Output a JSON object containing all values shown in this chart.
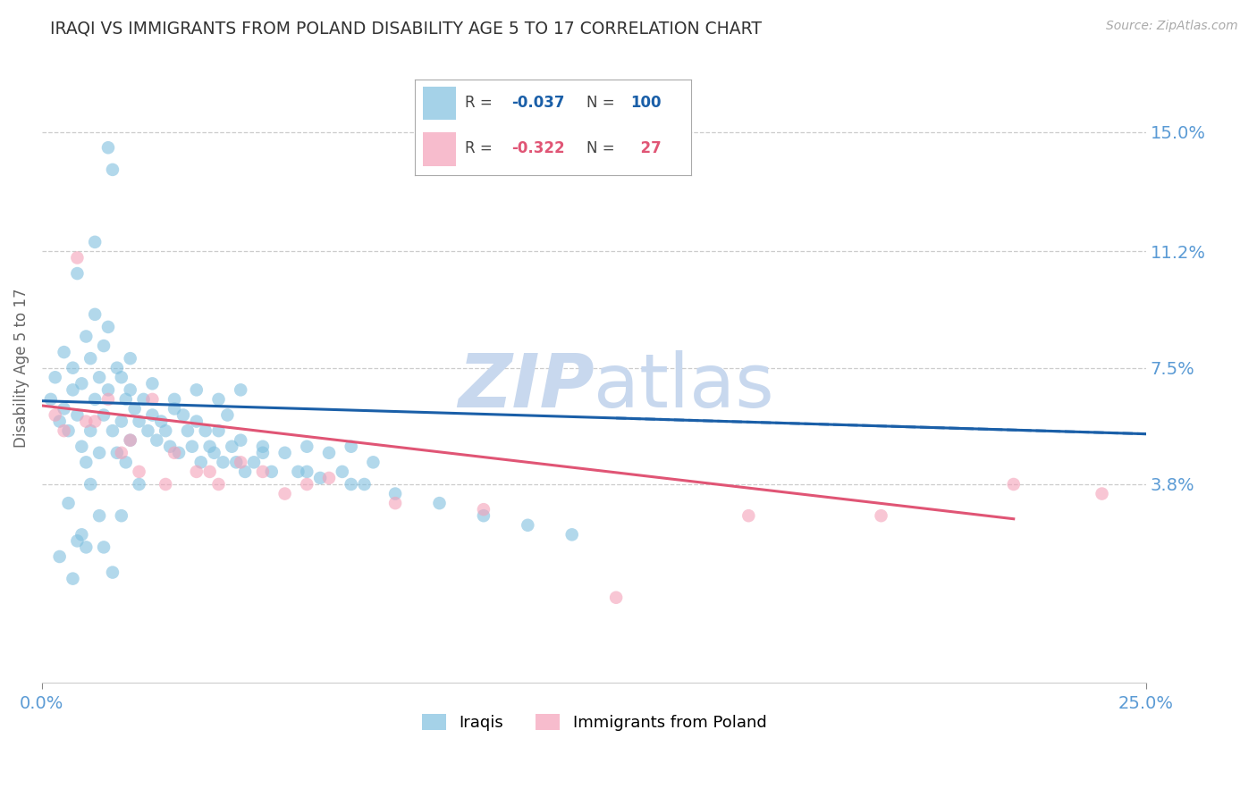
{
  "title": "IRAQI VS IMMIGRANTS FROM POLAND DISABILITY AGE 5 TO 17 CORRELATION CHART",
  "source": "Source: ZipAtlas.com",
  "ylabel": "Disability Age 5 to 17",
  "ytick_labels": [
    "15.0%",
    "11.2%",
    "7.5%",
    "3.8%"
  ],
  "ytick_values": [
    0.15,
    0.112,
    0.075,
    0.038
  ],
  "xlim": [
    0.0,
    0.25
  ],
  "ylim": [
    -0.025,
    0.175
  ],
  "iraq_color": "#7fbfdf",
  "poland_color": "#f4a0b8",
  "blue_line_color": "#1a5fa8",
  "pink_line_color": "#e05575",
  "background_color": "#ffffff",
  "grid_color": "#cccccc",
  "tick_label_color": "#5b9bd5",
  "watermark_zi_color": "#c8d8ee",
  "watermark_atlas_color": "#c8d8ee",
  "iraq_r": -0.037,
  "iraq_n": 100,
  "poland_r": -0.322,
  "poland_n": 27,
  "iraq_x": [
    0.002,
    0.003,
    0.004,
    0.005,
    0.005,
    0.006,
    0.007,
    0.007,
    0.008,
    0.008,
    0.009,
    0.009,
    0.01,
    0.01,
    0.011,
    0.011,
    0.012,
    0.012,
    0.013,
    0.013,
    0.014,
    0.014,
    0.015,
    0.015,
    0.016,
    0.016,
    0.017,
    0.017,
    0.018,
    0.018,
    0.019,
    0.019,
    0.02,
    0.02,
    0.021,
    0.022,
    0.023,
    0.024,
    0.025,
    0.026,
    0.027,
    0.028,
    0.029,
    0.03,
    0.031,
    0.032,
    0.033,
    0.034,
    0.035,
    0.036,
    0.037,
    0.038,
    0.039,
    0.04,
    0.041,
    0.042,
    0.043,
    0.044,
    0.045,
    0.046,
    0.048,
    0.05,
    0.052,
    0.055,
    0.058,
    0.06,
    0.063,
    0.065,
    0.068,
    0.07,
    0.073,
    0.075,
    0.012,
    0.015,
    0.02,
    0.025,
    0.03,
    0.035,
    0.04,
    0.045,
    0.05,
    0.06,
    0.07,
    0.08,
    0.09,
    0.1,
    0.11,
    0.12,
    0.008,
    0.01,
    0.022,
    0.018,
    0.014,
    0.016,
    0.006,
    0.009,
    0.011,
    0.013,
    0.004,
    0.007
  ],
  "iraq_y": [
    0.065,
    0.072,
    0.058,
    0.062,
    0.08,
    0.055,
    0.068,
    0.075,
    0.105,
    0.06,
    0.07,
    0.05,
    0.085,
    0.045,
    0.078,
    0.055,
    0.115,
    0.065,
    0.072,
    0.048,
    0.082,
    0.06,
    0.145,
    0.068,
    0.138,
    0.055,
    0.075,
    0.048,
    0.072,
    0.058,
    0.065,
    0.045,
    0.068,
    0.052,
    0.062,
    0.058,
    0.065,
    0.055,
    0.06,
    0.052,
    0.058,
    0.055,
    0.05,
    0.065,
    0.048,
    0.06,
    0.055,
    0.05,
    0.068,
    0.045,
    0.055,
    0.05,
    0.048,
    0.065,
    0.045,
    0.06,
    0.05,
    0.045,
    0.068,
    0.042,
    0.045,
    0.05,
    0.042,
    0.048,
    0.042,
    0.05,
    0.04,
    0.048,
    0.042,
    0.05,
    0.038,
    0.045,
    0.092,
    0.088,
    0.078,
    0.07,
    0.062,
    0.058,
    0.055,
    0.052,
    0.048,
    0.042,
    0.038,
    0.035,
    0.032,
    0.028,
    0.025,
    0.022,
    0.02,
    0.018,
    0.038,
    0.028,
    0.018,
    0.01,
    0.032,
    0.022,
    0.038,
    0.028,
    0.015,
    0.008
  ],
  "poland_x": [
    0.003,
    0.005,
    0.008,
    0.01,
    0.012,
    0.015,
    0.018,
    0.02,
    0.022,
    0.025,
    0.028,
    0.03,
    0.035,
    0.038,
    0.04,
    0.045,
    0.05,
    0.055,
    0.06,
    0.065,
    0.08,
    0.1,
    0.13,
    0.16,
    0.19,
    0.22,
    0.24
  ],
  "poland_y": [
    0.06,
    0.055,
    0.11,
    0.058,
    0.058,
    0.065,
    0.048,
    0.052,
    0.042,
    0.065,
    0.038,
    0.048,
    0.042,
    0.042,
    0.038,
    0.045,
    0.042,
    0.035,
    0.038,
    0.04,
    0.032,
    0.03,
    0.002,
    0.028,
    0.028,
    0.038,
    0.035
  ]
}
